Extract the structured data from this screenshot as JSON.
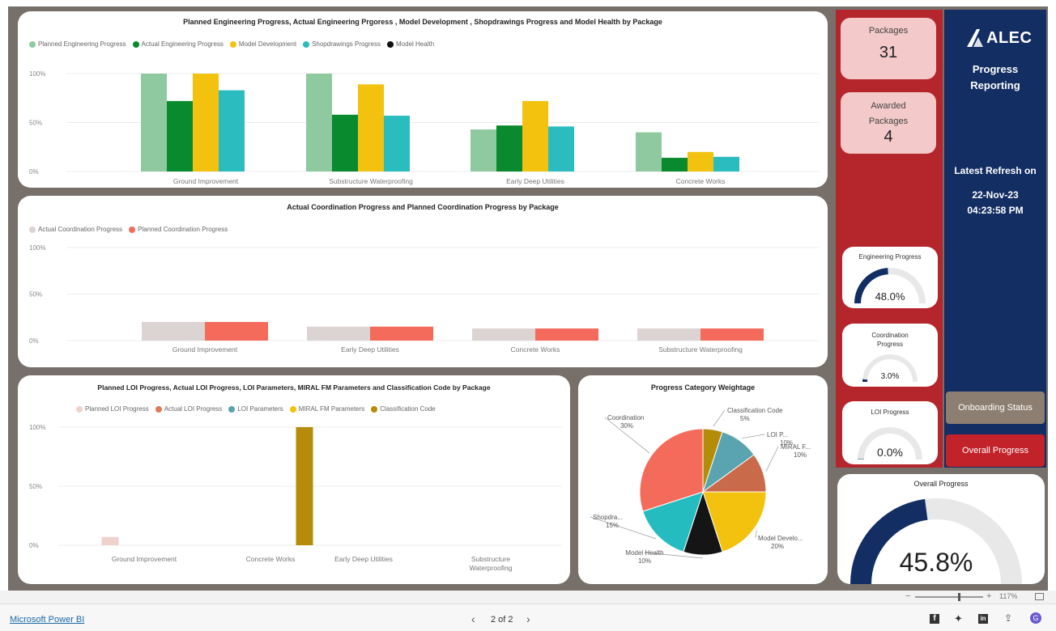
{
  "charts": {
    "engineering": {
      "title": "Planned Engineering Progress, Actual Engineering Prgoress , Model Development , Shopdrawings Progress and Model Health by Package",
      "legend": [
        {
          "name": "Planned Engineering Progress",
          "color": "#8fc9a0"
        },
        {
          "name": "Actual Engineering Progress",
          "color": "#0a8a2e"
        },
        {
          "name": "Model Development",
          "color": "#f2c20f"
        },
        {
          "name": "Shopdrawings Progress",
          "color": "#2bbcc0"
        },
        {
          "name": "Model Health",
          "color": "#111111"
        }
      ],
      "y_ticks": [
        "100%",
        "50%",
        "0%"
      ]
    },
    "coordination": {
      "title": "Actual Coordination Progress and Planned Coordination Progress by Package",
      "legend": [
        {
          "name": "Actual Coordination Progress",
          "color": "#dcd3d3"
        },
        {
          "name": "Planned Coordination Progress",
          "color": "#f46b5b"
        }
      ],
      "y_ticks": [
        "100%",
        "50%",
        "0%"
      ]
    },
    "loi": {
      "title": "Planned LOI Progress, Actual LOI Progress, LOI Parameters, MIRAL FM Parameters and Classification Code by Package",
      "legend": [
        {
          "name": "Planned LOI Progress",
          "color": "#f0d2cd"
        },
        {
          "name": "Actual LOI Progress",
          "color": "#e07a5a"
        },
        {
          "name": "LOI Parameters",
          "color": "#5aa3b0"
        },
        {
          "name": "MIRAL FM Parameters",
          "color": "#f2c20f"
        },
        {
          "name": "Classification Code",
          "color": "#b58c0a"
        }
      ],
      "y_ticks": [
        "100%",
        "50%",
        "0%"
      ]
    },
    "pie": {
      "title": "Progress Category Weightage"
    }
  },
  "chart_data": [
    {
      "type": "bar",
      "title": "Planned Engineering Progress, Actual Engineering Prgoress , Model Development , Shopdrawings Progress and Model Health by Package",
      "categories": [
        "Ground Improvement",
        "Substructure Waterproofing",
        "Early Deep Utilities",
        "Concrete Works"
      ],
      "series": [
        {
          "name": "Planned Engineering Progress",
          "values": [
            100,
            100,
            43,
            40
          ]
        },
        {
          "name": "Actual Engineering Progress",
          "values": [
            72,
            58,
            47,
            14
          ]
        },
        {
          "name": "Model Development",
          "values": [
            100,
            89,
            72,
            20
          ]
        },
        {
          "name": "Shopdrawings Progress",
          "values": [
            83,
            57,
            46,
            15
          ]
        },
        {
          "name": "Model Health",
          "values": [
            0,
            0,
            0,
            0
          ]
        }
      ],
      "ylim": [
        0,
        100
      ],
      "y_ticks": [
        "0%",
        "50%",
        "100%"
      ]
    },
    {
      "type": "bar",
      "title": "Actual Coordination Progress and Planned Coordination Progress by Package",
      "categories": [
        "Ground Improvement",
        "Early Deep Utilities",
        "Concrete Works",
        "Substructure Waterproofing"
      ],
      "series": [
        {
          "name": "Actual Coordination Progress",
          "values": [
            20,
            15,
            13,
            13
          ]
        },
        {
          "name": "Planned Coordination Progress",
          "values": [
            20,
            15,
            13,
            13
          ]
        }
      ],
      "ylim": [
        0,
        100
      ],
      "y_ticks": [
        "0%",
        "50%",
        "100%"
      ]
    },
    {
      "type": "bar",
      "title": "Planned LOI Progress, Actual LOI Progress, LOI Parameters, MIRAL FM Parameters and Classification Code by Package",
      "categories": [
        "Ground Improvement",
        "Concrete Works",
        "Early Deep Utilities",
        "Substructure Waterproofing"
      ],
      "series": [
        {
          "name": "Planned LOI Progress",
          "values": [
            7,
            0,
            0,
            0
          ]
        },
        {
          "name": "Actual LOI Progress",
          "values": [
            0,
            0,
            0,
            0
          ]
        },
        {
          "name": "LOI Parameters",
          "values": [
            0,
            0,
            0,
            0
          ]
        },
        {
          "name": "MIRAL FM Parameters",
          "values": [
            0,
            0,
            0,
            0
          ]
        },
        {
          "name": "Classification Code",
          "values": [
            0,
            100,
            0,
            0
          ]
        }
      ],
      "ylim": [
        0,
        100
      ],
      "y_ticks": [
        "0%",
        "50%",
        "100%"
      ]
    },
    {
      "type": "pie",
      "title": "Progress Category Weightage",
      "slices": [
        {
          "label": "Classification Code",
          "value": 5,
          "pct": "5%",
          "color": "#b58c0a"
        },
        {
          "label": "LOI P...",
          "value": 10,
          "pct": "10%",
          "color": "#5aa3b0"
        },
        {
          "label": "MIRAL F...",
          "value": 10,
          "pct": "10%",
          "color": "#c96a4a"
        },
        {
          "label": "Model Develo...",
          "value": 20,
          "pct": "20%",
          "color": "#f2c20f"
        },
        {
          "label": "Model Health",
          "value": 10,
          "pct": "10%",
          "color": "#151515"
        },
        {
          "label": "Shopdra...",
          "value": 15,
          "pct": "15%",
          "color": "#25bcc0"
        },
        {
          "label": "Coordination",
          "value": 30,
          "pct": "30%",
          "color": "#f46b5b"
        }
      ]
    }
  ],
  "kpis": {
    "packages_label": "Packages",
    "packages_value": "31",
    "awarded_label": "Awarded Packages",
    "awarded_value": "4"
  },
  "gauges": {
    "engineering": {
      "label": "Engineering Progress",
      "value": 48.0,
      "text": "48.0%"
    },
    "coordination": {
      "label": "Coordination Progress",
      "value": 3.0,
      "text": "3.0%"
    },
    "loi": {
      "label": "LOI Progress",
      "value": 0.0,
      "text": "0.0%"
    },
    "overall": {
      "label": "Overall Progress",
      "value": 45.8,
      "text": "45.8%"
    }
  },
  "brand": {
    "logo_text": "ALEC",
    "subtitle_line1": "Progress",
    "subtitle_line2": "Reporting",
    "refresh_label": "Latest Refresh on",
    "refresh_date": "22-Nov-23",
    "refresh_time": "04:23:58 PM"
  },
  "buttons": {
    "onboarding": "Onboarding Status",
    "overall": "Overall Progress"
  },
  "footer": {
    "link": "Microsoft Power BI",
    "pager": "2 of 2",
    "zoom": "117%"
  },
  "colors": {
    "panel_red": "#b5262c",
    "panel_blue": "#122e63",
    "gauge_fill": "#122e63",
    "gauge_track": "#e8e8e8"
  }
}
